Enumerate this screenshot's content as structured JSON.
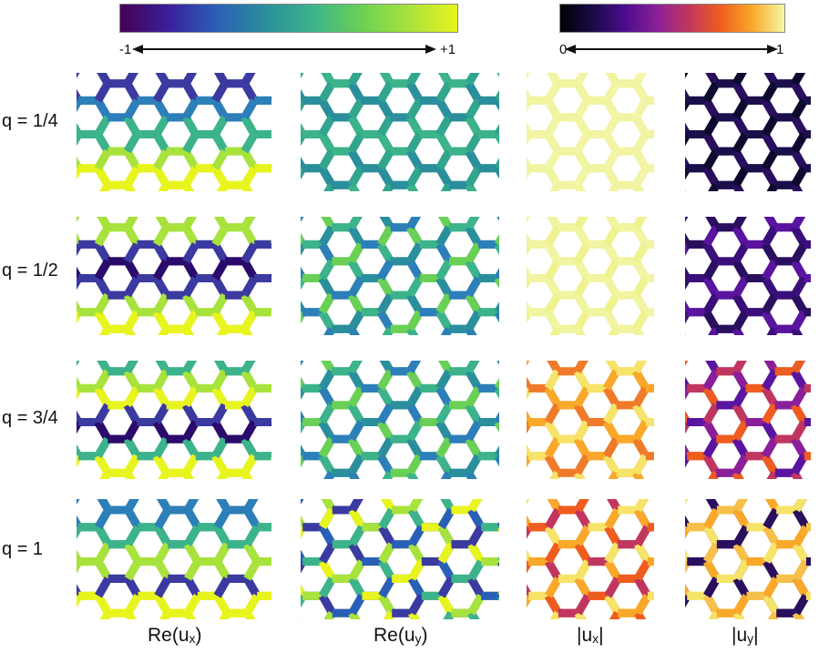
{
  "colorbars": [
    {
      "name": "viridis",
      "min_label": "-1",
      "max_label": "+1",
      "stops": [
        "#440154",
        "#3b1f9c",
        "#2a5fb8",
        "#2a8e9c",
        "#3cb38a",
        "#6ad055",
        "#a8e23c",
        "#e8f41e"
      ]
    },
    {
      "name": "inferno",
      "min_label": "0",
      "max_label": "1",
      "stops": [
        "#000004",
        "#1a0a45",
        "#4a0c8b",
        "#8a1f9a",
        "#c1365f",
        "#ef5c1f",
        "#f9a82a",
        "#f6f9a4"
      ]
    }
  ],
  "rows": [
    {
      "label": "q = 1/4"
    },
    {
      "label": "q = 1/2"
    },
    {
      "label": "q = 3/4"
    },
    {
      "label": "q = 1"
    }
  ],
  "columns": [
    {
      "main": "Re(u",
      "sub": "x",
      "tail": ")",
      "colormap": "viridis"
    },
    {
      "main": "Re(u",
      "sub": "y",
      "tail": ")",
      "colormap": "viridis"
    },
    {
      "main": "|u",
      "sub": "x",
      "tail": "|",
      "colormap": "inferno"
    },
    {
      "main": "|u",
      "sub": "y",
      "tail": "|",
      "colormap": "inferno"
    }
  ],
  "panels": [
    {
      "row": 0,
      "col": 0,
      "fill": [
        "#3b3aa0",
        "#2c7fb8",
        "#3cb38a",
        "#a8e23c",
        "#e8f41e"
      ],
      "mode": "vertical"
    },
    {
      "row": 0,
      "col": 1,
      "fill": [
        "#2a8e9c",
        "#32a58e",
        "#3cb38a",
        "#32a58e"
      ],
      "mode": "flat"
    },
    {
      "row": 0,
      "col": 2,
      "fill": [
        "#f1f4a0",
        "#f3f5a6"
      ],
      "mode": "flat"
    },
    {
      "row": 0,
      "col": 3,
      "fill": [
        "#0c0b2e",
        "#1a0f4a",
        "#2a0f5e"
      ],
      "mode": "flat"
    },
    {
      "row": 1,
      "col": 0,
      "fill": [
        "#a8e23c",
        "#3b3aa0",
        "#2a0a6a",
        "#3b3aa0",
        "#a8e23c",
        "#e8f41e"
      ],
      "mode": "vertical"
    },
    {
      "row": 1,
      "col": 1,
      "fill": [
        "#2a8e9c",
        "#3cb38a",
        "#6ad055",
        "#2c7fb8"
      ],
      "mode": "mixed"
    },
    {
      "row": 1,
      "col": 2,
      "fill": [
        "#f1f4a0",
        "#eef38f"
      ],
      "mode": "flat"
    },
    {
      "row": 1,
      "col": 3,
      "fill": [
        "#3a0f7a",
        "#5a14a0",
        "#2a0f5e"
      ],
      "mode": "mixed"
    },
    {
      "row": 2,
      "col": 0,
      "fill": [
        "#3cb38a",
        "#a8e23c",
        "#e8f41e",
        "#3b3aa0",
        "#2a0a6a",
        "#3cb38a",
        "#e8f41e"
      ],
      "mode": "vertical"
    },
    {
      "row": 2,
      "col": 1,
      "fill": [
        "#2a8e9c",
        "#3cb38a",
        "#6ad055",
        "#2c7fb8"
      ],
      "mode": "mixed"
    },
    {
      "row": 2,
      "col": 2,
      "fill": [
        "#f9a82a",
        "#f6e46a",
        "#ef7a2a"
      ],
      "mode": "mixed"
    },
    {
      "row": 2,
      "col": 3,
      "fill": [
        "#8a1f9a",
        "#c1365f",
        "#5a14a0",
        "#ef5c1f"
      ],
      "mode": "mixed"
    },
    {
      "row": 3,
      "col": 0,
      "fill": [
        "#2c7fb8",
        "#3cb38a",
        "#a8e23c",
        "#3b3aa0",
        "#e8f41e"
      ],
      "mode": "vertical"
    },
    {
      "row": 3,
      "col": 1,
      "fill": [
        "#3b3aa0",
        "#3cb38a",
        "#a8e23c",
        "#2a5fb8",
        "#e8f41e"
      ],
      "mode": "mixed"
    },
    {
      "row": 3,
      "col": 2,
      "fill": [
        "#c1365f",
        "#ef5c1f",
        "#f9a82a",
        "#f6e46a"
      ],
      "mode": "mixed"
    },
    {
      "row": 3,
      "col": 3,
      "fill": [
        "#f9a82a",
        "#f6c04a",
        "#2a0f5e",
        "#f6e46a"
      ],
      "mode": "mixed"
    }
  ]
}
